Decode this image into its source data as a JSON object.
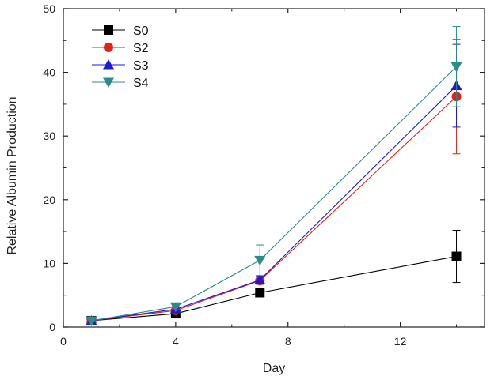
{
  "chart_data": {
    "type": "line",
    "title": "",
    "xlabel": "Day",
    "ylabel": "Relative Albumin Production",
    "xlim": [
      0,
      15
    ],
    "ylim": [
      0,
      50
    ],
    "xticks": [
      0,
      4,
      8,
      12
    ],
    "yticks": [
      0,
      10,
      20,
      30,
      40,
      50
    ],
    "x": [
      1,
      4,
      7,
      14
    ],
    "legend_position": "top-left",
    "series": [
      {
        "name": "S0",
        "values": [
          1.0,
          2.1,
          5.4,
          11.1
        ],
        "errors": [
          0.2,
          0.3,
          0.4,
          4.1
        ],
        "color": "#000000",
        "marker": "square"
      },
      {
        "name": "S2",
        "values": [
          1.0,
          2.6,
          7.3,
          36.2
        ],
        "errors": [
          0.2,
          0.3,
          0.6,
          9.0
        ],
        "color": "#e8201a",
        "marker": "circle"
      },
      {
        "name": "S3",
        "values": [
          1.0,
          2.8,
          7.4,
          37.9
        ],
        "errors": [
          0.2,
          0.4,
          0.6,
          6.5
        ],
        "color": "#1a1ad6",
        "marker": "triangle-up"
      },
      {
        "name": "S4",
        "values": [
          1.0,
          3.2,
          10.5,
          40.9
        ],
        "errors": [
          0.2,
          0.5,
          2.4,
          6.3
        ],
        "color": "#2a8c8c",
        "marker": "triangle-down"
      }
    ]
  }
}
